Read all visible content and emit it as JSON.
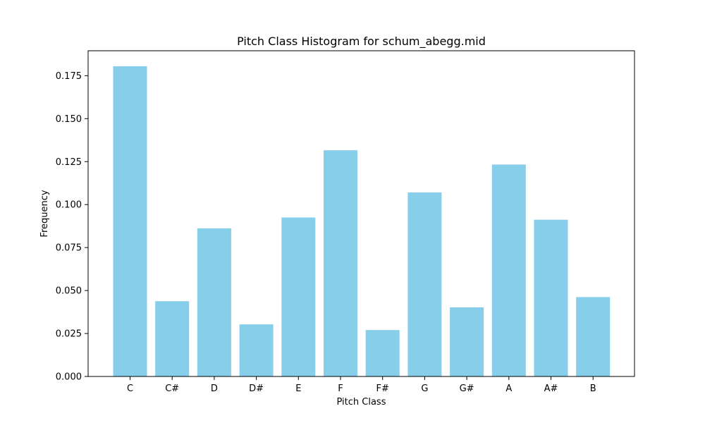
{
  "chart_data": {
    "type": "bar",
    "title": "Pitch Class Histogram for schum_abegg.mid",
    "xlabel": "Pitch Class",
    "ylabel": "Frequency",
    "categories": [
      "C",
      "C#",
      "D",
      "D#",
      "E",
      "F",
      "F#",
      "G",
      "G#",
      "A",
      "A#",
      "B"
    ],
    "values": [
      0.1805,
      0.0438,
      0.0862,
      0.0303,
      0.0925,
      0.1316,
      0.027,
      0.1071,
      0.0402,
      0.1233,
      0.0912,
      0.0462
    ],
    "ylim": [
      0,
      0.1895
    ],
    "yticks": [
      "0.000",
      "0.025",
      "0.050",
      "0.075",
      "0.100",
      "0.125",
      "0.150",
      "0.175"
    ],
    "ytick_values": [
      0,
      0.025,
      0.05,
      0.075,
      0.1,
      0.125,
      0.15,
      0.175
    ],
    "bar_color": "#87ceeb",
    "grid": false,
    "legend": "none"
  }
}
